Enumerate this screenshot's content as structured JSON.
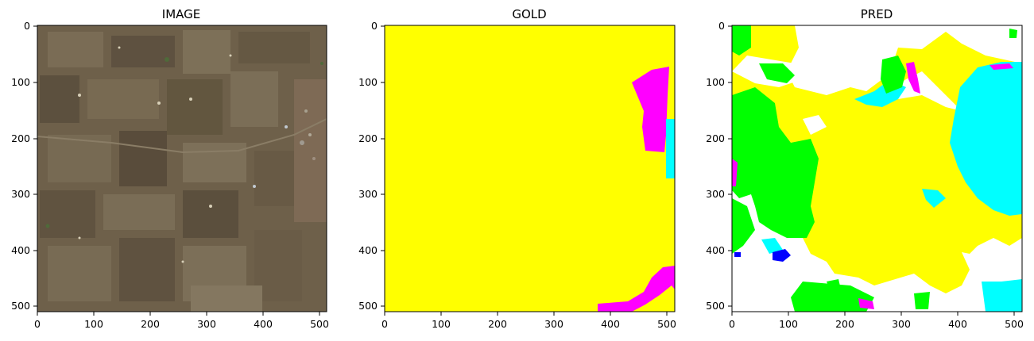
{
  "panels": [
    {
      "title": "IMAGE",
      "xticks": [
        "0",
        "100",
        "200",
        "300",
        "400",
        "500"
      ],
      "yticks": [
        "0",
        "100",
        "200",
        "300",
        "400",
        "500"
      ]
    },
    {
      "title": "GOLD",
      "xticks": [
        "0",
        "100",
        "200",
        "300",
        "400",
        "500"
      ],
      "yticks": [
        "0",
        "100",
        "200",
        "300",
        "400",
        "500"
      ]
    },
    {
      "title": "PRED",
      "xticks": [
        "0",
        "100",
        "200",
        "300",
        "400",
        "500"
      ],
      "yticks": [
        "0",
        "100",
        "200",
        "300",
        "400",
        "500"
      ]
    }
  ],
  "colors": {
    "image_base": "#6e604a",
    "yellow": "#ffff00",
    "magenta": "#ff00ff",
    "cyan": "#00ffff",
    "green": "#00ff00",
    "blue": "#0000ff",
    "white": "#ffffff"
  }
}
